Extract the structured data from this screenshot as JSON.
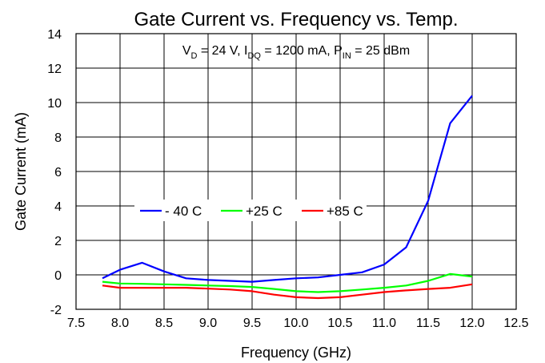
{
  "chart_data": {
    "type": "line",
    "title": "Gate Current vs. Frequency vs. Temp.",
    "xlabel": "Frequency (GHz)",
    "ylabel": "Gate Current (mA)",
    "xlim": [
      7.5,
      12.5
    ],
    "ylim": [
      -2,
      14
    ],
    "x_ticks": [
      "7.5",
      "8.0",
      "8.5",
      "9.0",
      "9.5",
      "10.0",
      "10.5",
      "11.0",
      "11.5",
      "12.0",
      "12.5"
    ],
    "y_ticks": [
      "-2",
      "0",
      "2",
      "4",
      "6",
      "8",
      "10",
      "12",
      "14"
    ],
    "grid": true,
    "legend_position": "middle-left",
    "annotation": {
      "parts": [
        {
          "text": "V",
          "sub": false
        },
        {
          "text": "D",
          "sub": true
        },
        {
          "text": " = 24 V, I",
          "sub": false
        },
        {
          "text": "DQ",
          "sub": true
        },
        {
          "text": " = 1200 mA, P",
          "sub": false
        },
        {
          "text": "IN",
          "sub": true
        },
        {
          "text": " = 25 dBm",
          "sub": false
        }
      ]
    },
    "series": [
      {
        "name": "- 40 C",
        "color": "#0000ff",
        "x": [
          7.8,
          8.0,
          8.25,
          8.5,
          8.75,
          9.0,
          9.25,
          9.5,
          9.75,
          10.0,
          10.25,
          10.5,
          10.75,
          11.0,
          11.25,
          11.5,
          11.75,
          12.0
        ],
        "y": [
          -0.2,
          0.3,
          0.7,
          0.2,
          -0.2,
          -0.3,
          -0.35,
          -0.4,
          -0.3,
          -0.2,
          -0.15,
          0.0,
          0.15,
          0.6,
          1.6,
          4.3,
          8.8,
          10.4
        ]
      },
      {
        "name": "+25 C",
        "color": "#00ff00",
        "x": [
          7.8,
          8.0,
          8.25,
          8.5,
          8.75,
          9.0,
          9.25,
          9.5,
          9.75,
          10.0,
          10.25,
          10.5,
          10.75,
          11.0,
          11.25,
          11.5,
          11.75,
          12.0
        ],
        "y": [
          -0.4,
          -0.5,
          -0.52,
          -0.55,
          -0.58,
          -0.62,
          -0.65,
          -0.7,
          -0.82,
          -0.95,
          -1.0,
          -0.95,
          -0.85,
          -0.75,
          -0.62,
          -0.35,
          0.05,
          -0.1
        ]
      },
      {
        "name": "+85 C",
        "color": "#ff0000",
        "x": [
          7.8,
          8.0,
          8.25,
          8.5,
          8.75,
          9.0,
          9.25,
          9.5,
          9.75,
          10.0,
          10.25,
          10.5,
          10.75,
          11.0,
          11.25,
          11.5,
          11.75,
          12.0
        ],
        "y": [
          -0.62,
          -0.75,
          -0.75,
          -0.75,
          -0.75,
          -0.8,
          -0.85,
          -0.95,
          -1.15,
          -1.3,
          -1.35,
          -1.3,
          -1.15,
          -1.0,
          -0.9,
          -0.82,
          -0.75,
          -0.55
        ]
      }
    ]
  }
}
